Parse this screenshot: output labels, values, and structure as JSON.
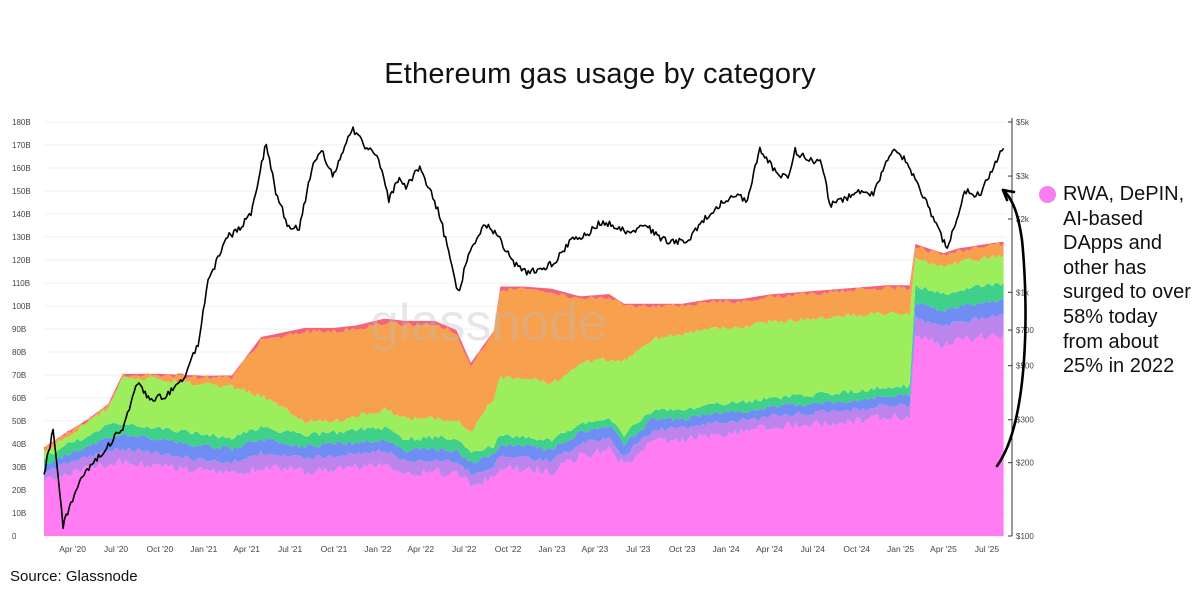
{
  "chart_data": {
    "type": "area",
    "title": "Ethereum gas usage by category",
    "left_axis": {
      "range": [
        0,
        180
      ],
      "tick_labels": [
        "0",
        "10B",
        "20B",
        "30B",
        "40B",
        "50B",
        "60B",
        "70B",
        "80B",
        "90B",
        "100B",
        "110B",
        "120B",
        "130B",
        "140B",
        "150B",
        "160B",
        "170B",
        "180B"
      ]
    },
    "right_axis": {
      "scale": "log",
      "tick_labels": [
        "$100",
        "$200",
        "$300",
        "$500",
        "$700",
        "$1k",
        "$2k",
        "$3k",
        "$5k"
      ],
      "tick_values": [
        100,
        200,
        300,
        500,
        700,
        1000,
        2000,
        3000,
        5000
      ]
    },
    "x_tick_labels": [
      "Apr '20",
      "Jul '20",
      "Oct '20",
      "Jan '21",
      "Apr '21",
      "Jul '21",
      "Oct '21",
      "Jan '22",
      "Apr '22",
      "Jul '22",
      "Oct '22",
      "Jan '23",
      "Apr '23",
      "Jul '23",
      "Oct '23",
      "Jan '24",
      "Apr '24",
      "Jul '24",
      "Oct '24",
      "Jan '25",
      "Apr '25",
      "Jul '25"
    ],
    "x_tick_dates": [
      "2020-04-01",
      "2020-07-01",
      "2020-10-01",
      "2021-01-01",
      "2021-04-01",
      "2021-07-01",
      "2021-10-01",
      "2022-01-01",
      "2022-04-01",
      "2022-07-01",
      "2022-10-01",
      "2023-01-01",
      "2023-04-01",
      "2023-07-01",
      "2023-10-01",
      "2024-01-01",
      "2024-04-01",
      "2024-07-01",
      "2024-10-01",
      "2025-01-01",
      "2025-04-01",
      "2025-07-01"
    ],
    "x_range": [
      "2020-02-01",
      "2025-08-10"
    ],
    "dates": [
      "2020-02-01",
      "2020-03-15",
      "2020-05-01",
      "2020-06-15",
      "2020-07-15",
      "2020-10-01",
      "2021-01-01",
      "2021-03-01",
      "2021-05-01",
      "2021-08-01",
      "2021-10-01",
      "2021-11-15",
      "2022-01-15",
      "2022-03-01",
      "2022-05-01",
      "2022-06-15",
      "2022-07-15",
      "2022-09-01",
      "2022-09-15",
      "2022-11-01",
      "2023-01-01",
      "2023-03-01",
      "2023-05-01",
      "2023-06-01",
      "2023-08-01",
      "2023-10-01",
      "2023-12-01",
      "2024-02-01",
      "2024-04-01",
      "2024-06-01",
      "2024-08-01",
      "2024-10-01",
      "2024-12-01",
      "2025-01-20",
      "2025-02-01",
      "2025-03-01",
      "2025-04-01",
      "2025-05-01",
      "2025-06-01",
      "2025-07-01",
      "2025-08-05"
    ],
    "series": [
      {
        "color": "#ff7cf2",
        "values": [
          25,
          27,
          29,
          31,
          32,
          30,
          28,
          27,
          30,
          28,
          29,
          30,
          31,
          27,
          28,
          27,
          22,
          25,
          30,
          29,
          28,
          35,
          38,
          30,
          41,
          42,
          44,
          45,
          47,
          48,
          49,
          50,
          52,
          52,
          87,
          85,
          83,
          85,
          86,
          87,
          88
        ]
      },
      {
        "color": "#bd84ee",
        "values": [
          3,
          4,
          5,
          6,
          6,
          6,
          5,
          5,
          6,
          6,
          6,
          6,
          6,
          5,
          5,
          5,
          5,
          5,
          5,
          5,
          5,
          5,
          5,
          5,
          5,
          5,
          5,
          5,
          5,
          5,
          5,
          5,
          5,
          5,
          8,
          8,
          8,
          8,
          8,
          8,
          8
        ]
      },
      {
        "color": "#6f8df2",
        "values": [
          3,
          4,
          5,
          6,
          6,
          6,
          6,
          6,
          6,
          5,
          5,
          5,
          5,
          5,
          5,
          5,
          5,
          5,
          5,
          5,
          5,
          5,
          5,
          5,
          5,
          4,
          4,
          4,
          4,
          4,
          4,
          4,
          4,
          4,
          7,
          7,
          7,
          7,
          7,
          7,
          7
        ]
      },
      {
        "color": "#3fd08a",
        "values": [
          3,
          4,
          4,
          5,
          5,
          5,
          5,
          5,
          5,
          5,
          5,
          5,
          5,
          5,
          5,
          5,
          4,
          4,
          4,
          4,
          4,
          4,
          4,
          4,
          4,
          4,
          4,
          4,
          4,
          4,
          4,
          4,
          4,
          4,
          7,
          7,
          7,
          7,
          7,
          7,
          7
        ]
      },
      {
        "color": "#9cee5c",
        "values": [
          3,
          4,
          6,
          8,
          20,
          21,
          22,
          22,
          14,
          6,
          5,
          6,
          8,
          9,
          8,
          8,
          9,
          21,
          25,
          26,
          24,
          26,
          25,
          32,
          31,
          33,
          33,
          33,
          33,
          33,
          33,
          33,
          32,
          32,
          12,
          12,
          12,
          12,
          12,
          12,
          12
        ]
      },
      {
        "color": "#f7a04e",
        "values": [
          1,
          1,
          1,
          1,
          1,
          2,
          3,
          4,
          24,
          39,
          39,
          38,
          38,
          41,
          41,
          38,
          29,
          28,
          38,
          38,
          40,
          28,
          27,
          24,
          14,
          12,
          12,
          11,
          11,
          11,
          11,
          11,
          11,
          11,
          5,
          5,
          5,
          5,
          5,
          5,
          5
        ]
      },
      {
        "color": "#f3647a",
        "values": [
          0.5,
          0.5,
          0.5,
          0.5,
          0.5,
          0.5,
          0.7,
          0.8,
          1.5,
          1.5,
          1.5,
          1.5,
          1.5,
          1.5,
          1.5,
          1.5,
          1.3,
          1.2,
          1.5,
          1.5,
          1.5,
          1.2,
          1.2,
          1.0,
          1.0,
          1.0,
          1.0,
          1.0,
          1.0,
          1.0,
          1.0,
          1.0,
          1.0,
          1.0,
          1.0,
          1.0,
          1.0,
          1.0,
          1.0,
          1.0,
          1.0
        ]
      }
    ],
    "price_line": {
      "color": "#000000",
      "dates": [
        "2020-02-01",
        "2020-02-20",
        "2020-03-12",
        "2020-03-25",
        "2020-04-15",
        "2020-05-15",
        "2020-06-15",
        "2020-07-15",
        "2020-08-15",
        "2020-09-10",
        "2020-10-15",
        "2020-11-20",
        "2020-12-20",
        "2021-01-10",
        "2021-02-20",
        "2021-03-15",
        "2021-04-10",
        "2021-05-12",
        "2021-06-01",
        "2021-06-25",
        "2021-07-20",
        "2021-08-15",
        "2021-09-05",
        "2021-09-28",
        "2021-10-20",
        "2021-11-10",
        "2021-12-05",
        "2021-12-30",
        "2022-01-24",
        "2022-02-15",
        "2022-03-01",
        "2022-03-30",
        "2022-05-10",
        "2022-06-18",
        "2022-07-10",
        "2022-08-14",
        "2022-09-10",
        "2022-10-15",
        "2022-11-09",
        "2022-12-15",
        "2023-01-10",
        "2023-02-10",
        "2023-03-10",
        "2023-04-15",
        "2023-05-15",
        "2023-06-15",
        "2023-07-15",
        "2023-08-20",
        "2023-09-15",
        "2023-10-15",
        "2023-11-15",
        "2023-12-15",
        "2024-01-15",
        "2024-02-15",
        "2024-03-12",
        "2024-04-15",
        "2024-05-10",
        "2024-05-25",
        "2024-06-20",
        "2024-07-20",
        "2024-08-05",
        "2024-09-05",
        "2024-10-01",
        "2024-11-05",
        "2024-12-15",
        "2025-01-15",
        "2025-02-10",
        "2025-03-10",
        "2025-04-09",
        "2025-05-15",
        "2025-06-15",
        "2025-07-15",
        "2025-08-05"
      ],
      "values": [
        180,
        270,
        110,
        130,
        170,
        200,
        235,
        280,
        420,
        360,
        380,
        450,
        620,
        1100,
        1700,
        1800,
        2100,
        4100,
        2600,
        1900,
        1800,
        3200,
        3900,
        3000,
        3800,
        4700,
        4000,
        3700,
        2400,
        3000,
        2700,
        3300,
        2100,
        1000,
        1400,
        1900,
        1700,
        1300,
        1200,
        1250,
        1350,
        1650,
        1700,
        1950,
        1850,
        1750,
        1900,
        1650,
        1600,
        1650,
        2000,
        2250,
        2500,
        2400,
        3900,
        3100,
        2900,
        3800,
        3500,
        3400,
        2300,
        2400,
        2600,
        2500,
        3900,
        3400,
        2700,
        2000,
        1500,
        2600,
        2500,
        3300,
        3900
      ]
    }
  },
  "annotation": {
    "text": "RWA, DePIN, AI-based DApps and other has surged to over 58% today from about 25% in 2022",
    "dot_color": "#f77df0"
  },
  "watermark": "glassnode",
  "source": "Source: Glassnode"
}
